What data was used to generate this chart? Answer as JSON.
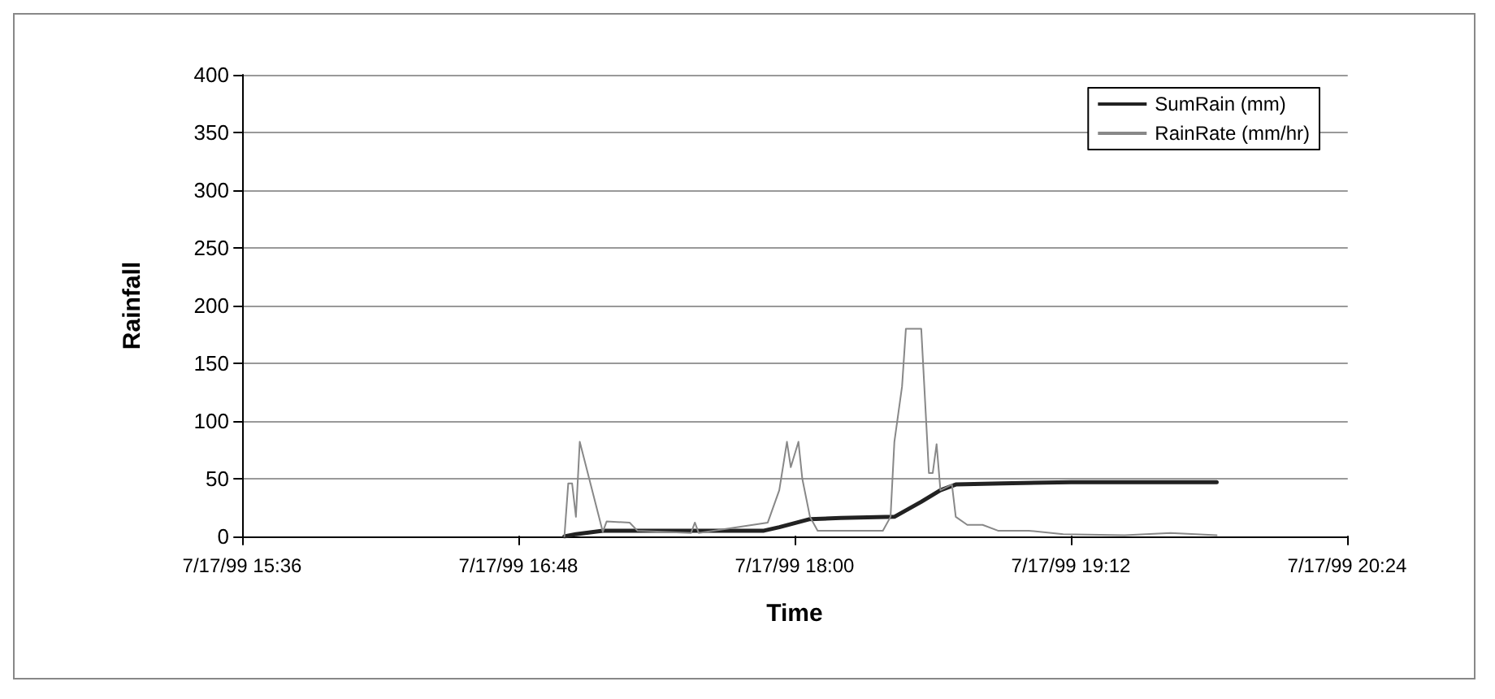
{
  "chart_data": {
    "type": "line",
    "xlabel": "Time",
    "ylabel": "Rainfall",
    "xlim": [
      "1999-07-17T15:36",
      "1999-07-17T20:24"
    ],
    "xticks": [
      {
        "value": "1999-07-17T15:36",
        "label": "7/17/99 15:36"
      },
      {
        "value": "1999-07-17T16:48",
        "label": "7/17/99 16:48"
      },
      {
        "value": "1999-07-17T18:00",
        "label": "7/17/99 18:00"
      },
      {
        "value": "1999-07-17T19:12",
        "label": "7/17/99 19:12"
      },
      {
        "value": "1999-07-17T20:24",
        "label": "7/17/99 20:24"
      }
    ],
    "ylim": [
      0,
      400
    ],
    "yticks": [
      0,
      50,
      100,
      150,
      200,
      250,
      300,
      350,
      400
    ],
    "grid": "y",
    "legend": "top right",
    "marker": "none",
    "line_style": "solid",
    "series": [
      {
        "name": "SumRain (mm)",
        "color": "#222222",
        "x": [
          "1999-07-17T17:00",
          "1999-07-17T17:03",
          "1999-07-17T17:10",
          "1999-07-17T17:24",
          "1999-07-17T17:42",
          "1999-07-17T17:52",
          "1999-07-17T17:56",
          "1999-07-17T18:04",
          "1999-07-17T18:12",
          "1999-07-17T18:26",
          "1999-07-17T18:33",
          "1999-07-17T18:38",
          "1999-07-17T18:42",
          "1999-07-17T18:54",
          "1999-07-17T19:12",
          "1999-07-17T19:30",
          "1999-07-17T19:50"
        ],
        "values": [
          0,
          2,
          5,
          5,
          5,
          5,
          8,
          15,
          16,
          17,
          30,
          40,
          45,
          46,
          47,
          47,
          47
        ]
      },
      {
        "name": "RainRate (mm/hr)",
        "color": "#888888",
        "x": [
          "1999-07-17T17:00",
          "1999-07-17T17:01",
          "1999-07-17T17:02",
          "1999-07-17T17:03",
          "1999-07-17T17:04",
          "1999-07-17T17:10",
          "1999-07-17T17:11",
          "1999-07-17T17:17",
          "1999-07-17T17:19",
          "1999-07-17T17:33",
          "1999-07-17T17:34",
          "1999-07-17T17:35",
          "1999-07-17T17:53",
          "1999-07-17T17:56",
          "1999-07-17T17:58",
          "1999-07-17T17:59",
          "1999-07-17T18:01",
          "1999-07-17T18:02",
          "1999-07-17T18:04",
          "1999-07-17T18:06",
          "1999-07-17T18:23",
          "1999-07-17T18:25",
          "1999-07-17T18:26",
          "1999-07-17T18:28",
          "1999-07-17T18:29",
          "1999-07-17T18:33",
          "1999-07-17T18:35",
          "1999-07-17T18:36",
          "1999-07-17T18:37",
          "1999-07-17T18:38",
          "1999-07-17T18:41",
          "1999-07-17T18:42",
          "1999-07-17T18:45",
          "1999-07-17T18:49",
          "1999-07-17T18:53",
          "1999-07-17T19:01",
          "1999-07-17T19:10",
          "1999-07-17T19:26",
          "1999-07-17T19:38",
          "1999-07-17T19:50"
        ],
        "values": [
          0,
          46,
          46,
          17,
          82,
          4,
          13,
          12,
          5,
          3,
          12,
          3,
          12,
          40,
          82,
          60,
          82,
          50,
          17,
          5,
          5,
          17,
          82,
          130,
          180,
          180,
          55,
          55,
          80,
          40,
          45,
          17,
          10,
          10,
          5,
          5,
          2,
          1,
          3,
          1
        ]
      }
    ]
  }
}
